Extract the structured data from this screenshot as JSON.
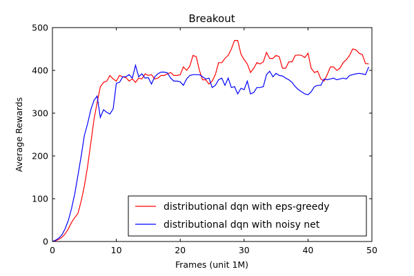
{
  "chart_data": {
    "type": "line",
    "title": "Breakout",
    "xlabel": "Frames (unit 1M)",
    "ylabel": "Average Rewards",
    "xlim": [
      0,
      50
    ],
    "ylim": [
      0,
      500
    ],
    "xticks": [
      "0",
      "10",
      "20",
      "30",
      "40",
      "50"
    ],
    "yticks": [
      "0",
      "100",
      "200",
      "300",
      "400",
      "500"
    ],
    "grid": false,
    "legend_position": "bottom-right",
    "x": [
      0,
      0.5,
      1,
      1.5,
      2,
      2.5,
      3,
      3.5,
      4,
      4.5,
      5,
      5.5,
      6,
      6.5,
      7,
      7.5,
      8,
      8.5,
      9,
      9.5,
      10,
      10.5,
      11,
      11.5,
      12,
      12.5,
      13,
      13.5,
      14,
      14.5,
      15,
      15.5,
      16,
      16.5,
      17,
      17.5,
      18,
      18.5,
      19,
      19.5,
      20,
      20.5,
      21,
      21.5,
      22,
      22.5,
      23,
      23.5,
      24,
      24.5,
      25,
      25.5,
      26,
      26.5,
      27,
      27.5,
      28,
      28.5,
      29,
      29.5,
      30,
      30.5,
      31,
      31.5,
      32,
      32.5,
      33,
      33.5,
      34,
      34.5,
      35,
      35.5,
      36,
      36.5,
      37,
      37.5,
      38,
      38.5,
      39,
      39.5,
      40,
      40.5,
      41,
      41.5,
      42,
      42.5,
      43,
      43.5,
      44,
      44.5,
      45,
      45.5,
      46,
      46.5,
      47,
      47.5,
      48,
      48.5,
      49,
      49.5
    ],
    "series": [
      {
        "name": "distributional dqn with eps-greedy",
        "color": "#ff0000",
        "values": [
          0,
          2,
          5,
          10,
          18,
          30,
          45,
          56,
          66,
          95,
          130,
          175,
          230,
          285,
          325,
          362,
          372,
          375,
          388,
          380,
          375,
          388,
          385,
          383,
          375,
          380,
          372,
          382,
          380,
          392,
          388,
          390,
          380,
          382,
          388,
          388,
          392,
          395,
          388,
          388,
          390,
          408,
          400,
          410,
          435,
          432,
          400,
          378,
          378,
          368,
          375,
          390,
          418,
          418,
          428,
          435,
          450,
          470,
          470,
          438,
          425,
          415,
          395,
          405,
          418,
          415,
          420,
          442,
          428,
          428,
          435,
          432,
          405,
          405,
          420,
          420,
          435,
          436,
          435,
          430,
          440,
          405,
          395,
          398,
          380,
          375,
          390,
          408,
          408,
          400,
          405,
          418,
          425,
          435,
          450,
          448,
          440,
          437,
          416,
          415
        ]
      },
      {
        "name": "distributional dqn with noisy net",
        "color": "#0000ff",
        "values": [
          0,
          3,
          8,
          16,
          30,
          50,
          78,
          112,
          155,
          200,
          248,
          275,
          308,
          330,
          340,
          290,
          308,
          302,
          298,
          310,
          370,
          372,
          385,
          385,
          390,
          382,
          412,
          385,
          392,
          382,
          383,
          368,
          385,
          392,
          396,
          396,
          394,
          382,
          375,
          375,
          373,
          365,
          380,
          388,
          390,
          390,
          390,
          385,
          380,
          382,
          360,
          365,
          378,
          382,
          365,
          382,
          360,
          362,
          345,
          358,
          355,
          375,
          345,
          348,
          360,
          360,
          362,
          390,
          398,
          385,
          393,
          388,
          387,
          382,
          378,
          372,
          362,
          355,
          350,
          345,
          343,
          350,
          362,
          365,
          365,
          380,
          378,
          380,
          382,
          378,
          380,
          382,
          380,
          388,
          390,
          392,
          393,
          392,
          390,
          408
        ]
      }
    ]
  }
}
